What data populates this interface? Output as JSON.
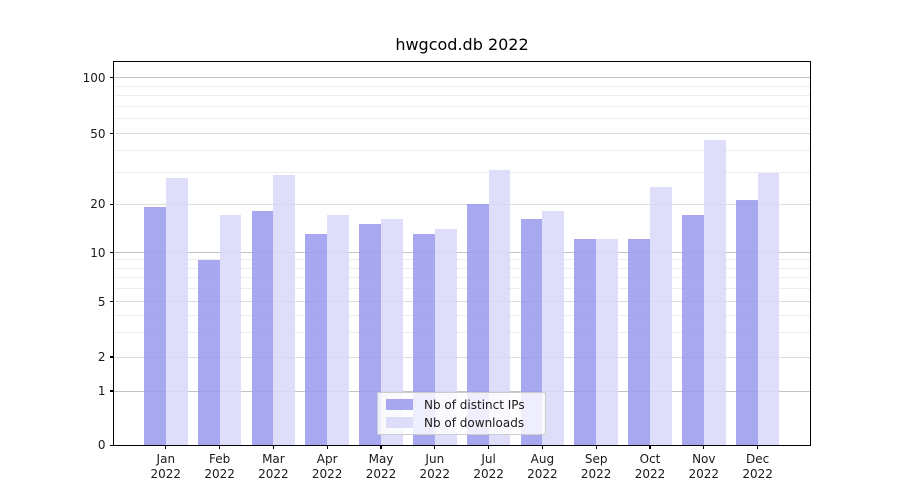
{
  "chart_data": {
    "type": "bar",
    "title": "hwgcod.db 2022",
    "categories": [
      "Jan 2022",
      "Feb 2022",
      "Mar 2022",
      "Apr 2022",
      "May 2022",
      "Jun 2022",
      "Jul 2022",
      "Aug 2022",
      "Sep 2022",
      "Oct 2022",
      "Nov 2022",
      "Dec 2022"
    ],
    "series": [
      {
        "name": "Nb of distinct IPs",
        "color": "#9a9aee",
        "values": [
          19,
          9,
          18,
          13,
          15,
          13,
          20,
          16,
          12,
          12,
          17,
          21
        ]
      },
      {
        "name": "Nb of downloads",
        "color": "#d9d9f9",
        "values": [
          28,
          17,
          29,
          17,
          16,
          14,
          31,
          18,
          12,
          25,
          46,
          30
        ]
      }
    ],
    "yscale": "symlog",
    "yticks": [
      0,
      1,
      2,
      5,
      10,
      20,
      50,
      100
    ],
    "ylim": [
      0,
      120
    ],
    "xlabel": "",
    "ylabel": "",
    "grid": true,
    "legend_position": "lower center"
  }
}
